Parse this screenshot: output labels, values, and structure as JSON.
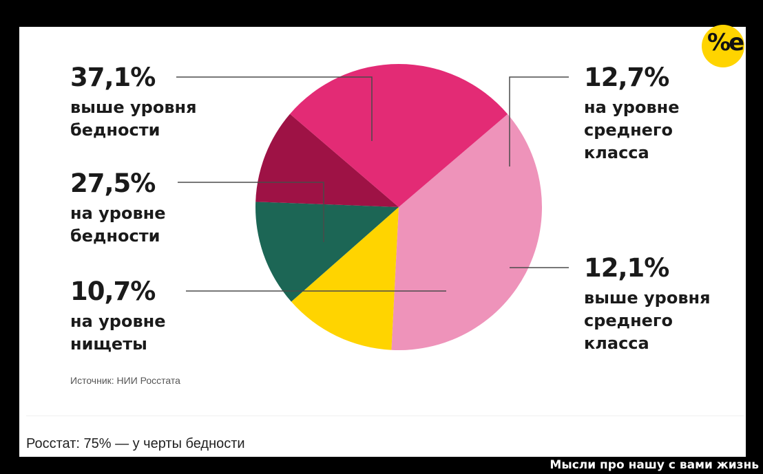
{
  "chart_data": {
    "type": "pie",
    "slices": [
      {
        "value": 37.1,
        "percent_label": "37,1%",
        "label": "выше уровня\nбедности",
        "color": "#ee93ba"
      },
      {
        "value": 12.7,
        "percent_label": "12,7%",
        "label": "на уровне\nсреднего\nкласса",
        "color": "#ffd400"
      },
      {
        "value": 12.1,
        "percent_label": "12,1%",
        "label": "выше уровня\nсреднего\nкласса",
        "color": "#1c6655"
      },
      {
        "value": 10.7,
        "percent_label": "10,7%",
        "label": "на уровне\nнищеты",
        "color": "#9e1245"
      },
      {
        "value": 27.5,
        "percent_label": "27,5%",
        "label": "на уровне\nбедности",
        "color": "#e32b75"
      }
    ],
    "source": "Источник: НИИ Росстата"
  },
  "caption": "Росстат: 75% — у черты бедности",
  "watermark": "Мысли про нашу с вами жизнь",
  "logo_text": "%e"
}
